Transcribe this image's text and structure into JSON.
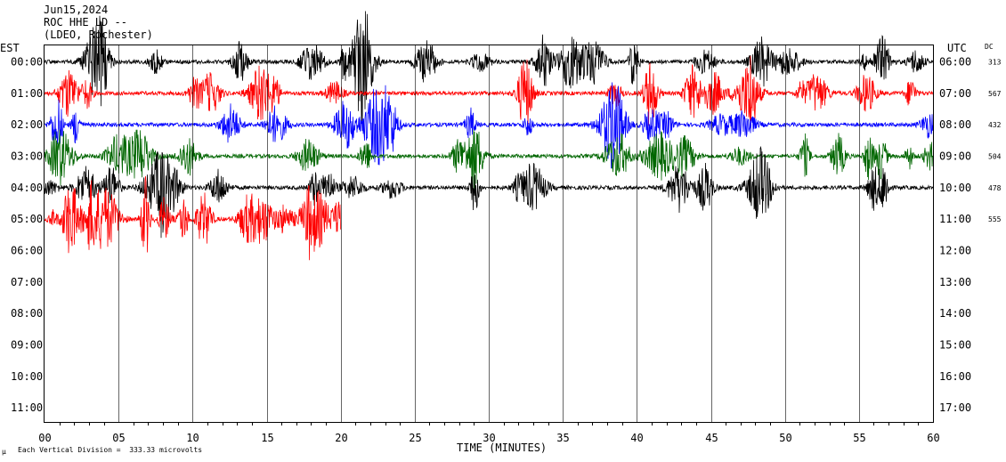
{
  "header": {
    "date": "Jun15,2024",
    "station": "ROC HHE LD --",
    "network": "(LDEO, Rochester)"
  },
  "left_zone": "EST",
  "right_zone": "UTC",
  "dc_label": "DC",
  "footer": {
    "scale_note": "Each Vertical Division =  333.33 microvolts",
    "mark": "µ"
  },
  "chart_data": {
    "type": "line",
    "xlabel": "TIME (MINUTES)",
    "x_ticks": [
      "00",
      "05",
      "10",
      "15",
      "20",
      "25",
      "30",
      "35",
      "40",
      "45",
      "50",
      "55",
      "60"
    ],
    "xlim": [
      0,
      60
    ],
    "left_ticks": [
      "00:00",
      "01:00",
      "02:00",
      "03:00",
      "04:00",
      "05:00",
      "06:00",
      "07:00",
      "08:00",
      "09:00",
      "10:00",
      "11:00"
    ],
    "right_ticks": [
      "06:00",
      "07:00",
      "08:00",
      "09:00",
      "10:00",
      "11:00",
      "12:00",
      "13:00",
      "14:00",
      "15:00",
      "16:00",
      "17:00"
    ],
    "grid": "vertical",
    "series": [
      {
        "row": 0,
        "color": "#000000",
        "dc": "313",
        "end_minute": 60
      },
      {
        "row": 1,
        "color": "#ff0000",
        "dc": "567",
        "end_minute": 60
      },
      {
        "row": 2,
        "color": "#0000ff",
        "dc": "432",
        "end_minute": 60
      },
      {
        "row": 3,
        "color": "#006600",
        "dc": "504",
        "end_minute": 60
      },
      {
        "row": 4,
        "color": "#000000",
        "dc": "478",
        "end_minute": 60
      },
      {
        "row": 5,
        "color": "#ff0000",
        "dc": "555",
        "end_minute": 20
      }
    ]
  }
}
